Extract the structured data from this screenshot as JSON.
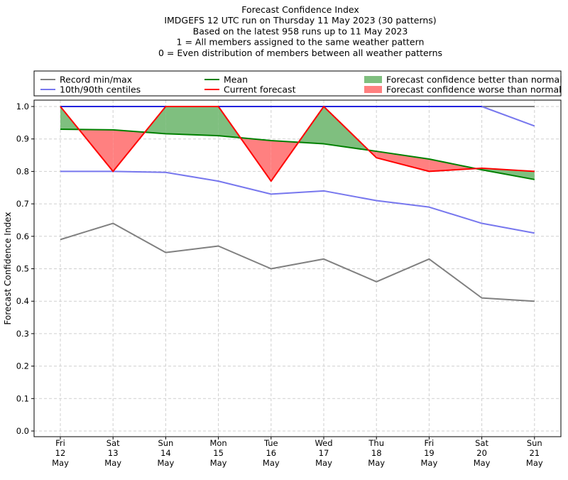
{
  "chart_data": {
    "type": "line",
    "title_lines": [
      "Forecast Confidence Index",
      "IMDGEFS 12 UTC run on Thursday 11 May 2023 (30 patterns)",
      "Based on the latest 958 runs up to 11 May 2023",
      "1 = All members assigned to the same weather pattern",
      "0 = Even distribution of members between all weather patterns"
    ],
    "ylabel": "Forecast Confidence Index",
    "ylim": [
      0,
      1
    ],
    "yticks": [
      "0.0",
      "0.1",
      "0.2",
      "0.3",
      "0.4",
      "0.5",
      "0.6",
      "0.7",
      "0.8",
      "0.9",
      "1.0"
    ],
    "grid": true,
    "legend_position": "top",
    "categories": [
      [
        "Fri",
        "12",
        "May"
      ],
      [
        "Sat",
        "13",
        "May"
      ],
      [
        "Sun",
        "14",
        "May"
      ],
      [
        "Mon",
        "15",
        "May"
      ],
      [
        "Tue",
        "16",
        "May"
      ],
      [
        "Wed",
        "17",
        "May"
      ],
      [
        "Thu",
        "18",
        "May"
      ],
      [
        "Fri",
        "19",
        "May"
      ],
      [
        "Sat",
        "20",
        "May"
      ],
      [
        "Sun",
        "21",
        "May"
      ]
    ],
    "series": {
      "record_max": [
        1.0,
        1.0,
        1.0,
        1.0,
        1.0,
        1.0,
        1.0,
        1.0,
        1.0,
        1.0
      ],
      "record_min": [
        0.59,
        0.64,
        0.55,
        0.57,
        0.5,
        0.53,
        0.46,
        0.53,
        0.41,
        0.4
      ],
      "centile_90": [
        1.0,
        1.0,
        1.0,
        1.0,
        1.0,
        1.0,
        1.0,
        1.0,
        1.0,
        0.94
      ],
      "centile_10": [
        0.8,
        0.8,
        0.797,
        0.77,
        0.73,
        0.74,
        0.71,
        0.69,
        0.64,
        0.61
      ],
      "mean": [
        0.93,
        0.928,
        0.916,
        0.91,
        0.895,
        0.885,
        0.862,
        0.838,
        0.805,
        0.775
      ],
      "current": [
        1.0,
        0.8,
        1.0,
        1.0,
        0.77,
        1.0,
        0.842,
        0.8,
        0.81,
        0.8
      ]
    },
    "legend": [
      {
        "label": "Record min/max",
        "kind": "line",
        "color": "#808080"
      },
      {
        "label": "10th/90th centiles",
        "kind": "line",
        "color": "#7777ee"
      },
      {
        "label": "Mean",
        "kind": "line",
        "color": "#008000"
      },
      {
        "label": "Current forecast",
        "kind": "line",
        "color": "#ff0000"
      },
      {
        "label": "Forecast confidence better than normal",
        "kind": "patch",
        "color": "#7fbf7f"
      },
      {
        "label": "Forecast confidence worse than normal",
        "kind": "patch",
        "color": "#ff8080"
      }
    ],
    "colors": {
      "record": "#808080",
      "centile": "#7777ee",
      "centile_top": "#2222dd",
      "mean": "#008000",
      "current": "#ff0000",
      "better_fill": "#7fbf7f",
      "worse_fill": "#ff8080"
    }
  }
}
